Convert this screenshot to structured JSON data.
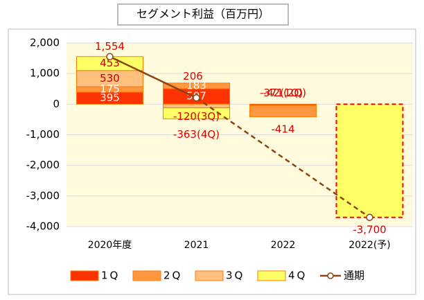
{
  "chart_data": {
    "type": "bar",
    "title": "セグメント利益（百万円）",
    "categories": [
      "2020年度",
      "2021",
      "2022",
      "2022(予)"
    ],
    "stacked": true,
    "ylim": [
      -4000,
      2000
    ],
    "yticks": [
      {
        "value": 2000,
        "label": "2,000"
      },
      {
        "value": 1000,
        "label": "1,000"
      },
      0,
      {
        "value": -1000,
        "label": "-1,000"
      },
      {
        "value": -2000,
        "label": "-2,000"
      },
      {
        "value": -3000,
        "label": "-3,000"
      },
      {
        "value": -4000,
        "label": "-4,000"
      }
    ],
    "grid": true,
    "legend": "bottom",
    "series": [
      {
        "name": "1Q",
        "color": "#ff3300",
        "values": [
          395,
          507,
          -42,
          null
        ],
        "value_labels": [
          "395",
          "507",
          "-42(1Q)",
          null
        ]
      },
      {
        "name": "2Q",
        "color": "#ff9640",
        "values": [
          175,
          183,
          -371,
          null
        ],
        "value_labels": [
          "175",
          "183",
          "-371(2Q)",
          null
        ]
      },
      {
        "name": "3Q",
        "color": "#ffc080",
        "values": [
          530,
          -120,
          null,
          null
        ],
        "value_labels": [
          "530",
          "-120(3Q)",
          null,
          null
        ]
      },
      {
        "name": "4Q",
        "color": "#ffff66",
        "values": [
          453,
          -363,
          null,
          null
        ],
        "value_labels": [
          "453",
          "-363(4Q)",
          null,
          null
        ]
      },
      {
        "name": "通期",
        "type": "line",
        "color": "#8b4513",
        "values": [
          1554,
          206,
          -414,
          -3700
        ],
        "value_labels": [
          "1,554",
          "206",
          "-414",
          "-3,700"
        ]
      }
    ]
  }
}
